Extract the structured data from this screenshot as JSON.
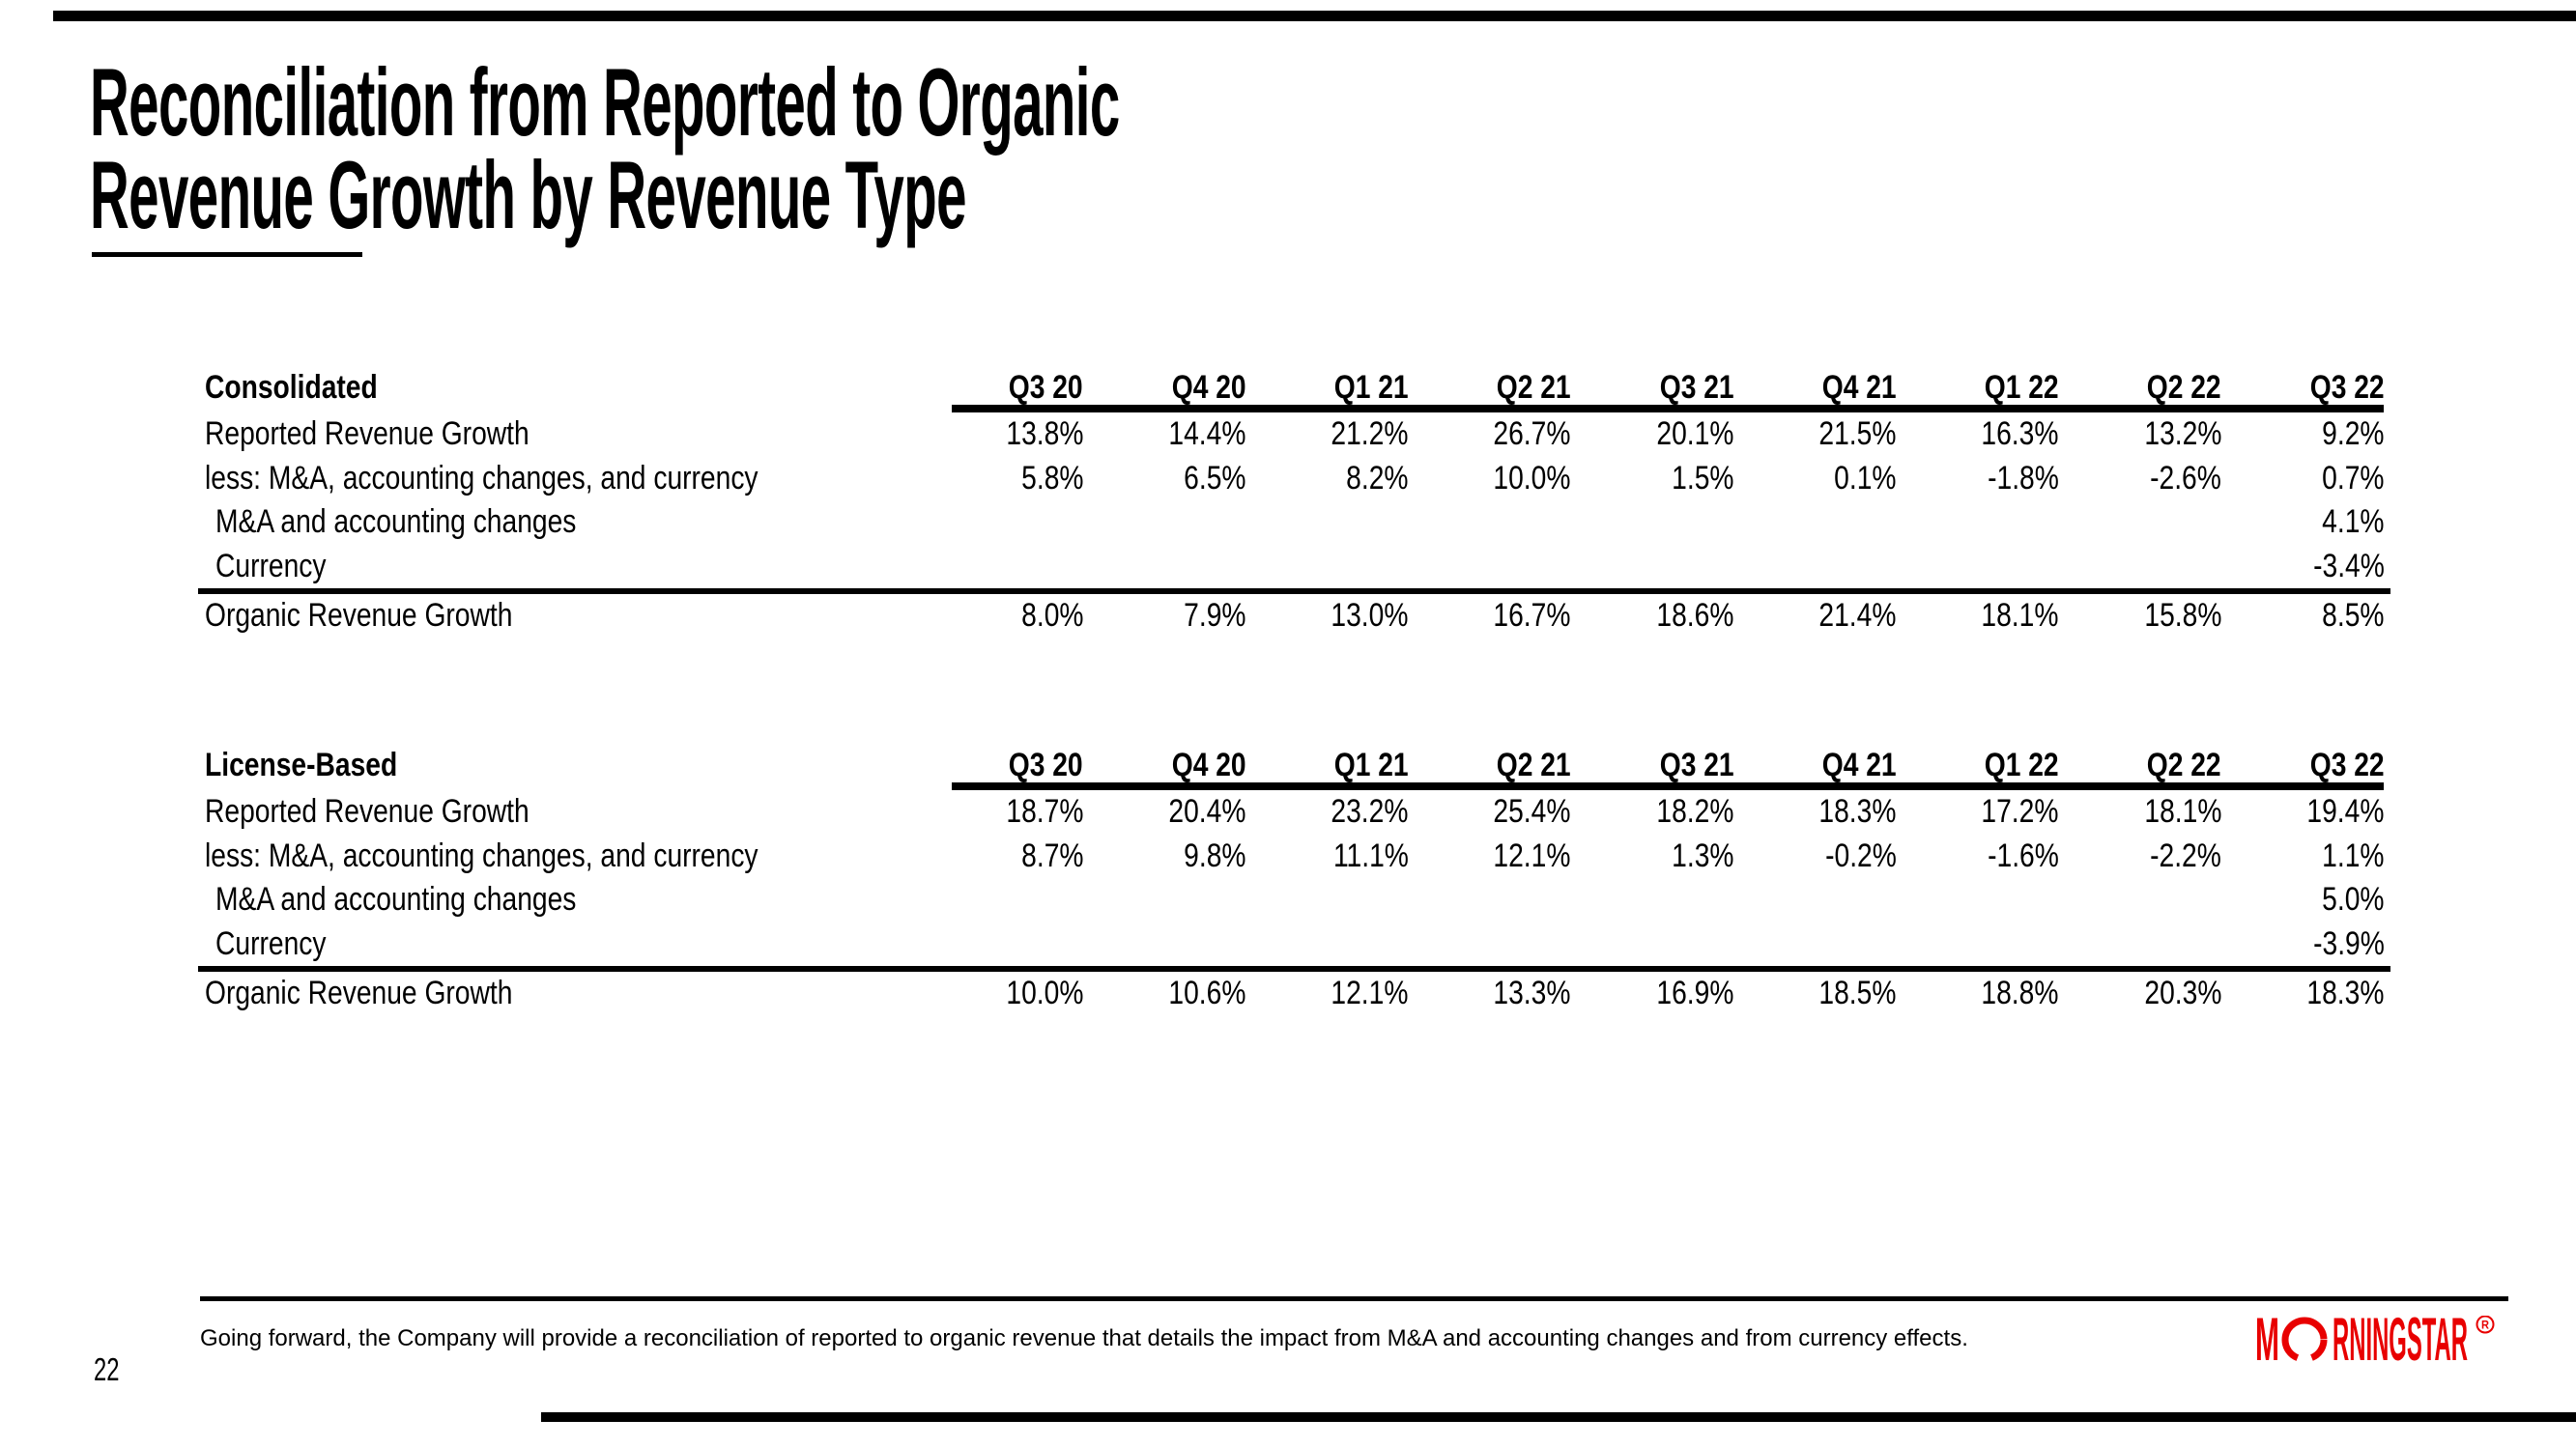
{
  "slide": {
    "title_line1": "Reconciliation from Reported to Organic",
    "title_line2": "Revenue Growth by Revenue Type",
    "page_number": "22",
    "footnote": "Going forward, the Company will provide a reconciliation of reported to organic revenue that details the impact from M&A and accounting changes and from currency effects.",
    "background_color": "#ffffff",
    "text_color": "#000000",
    "logo": {
      "prefix": "M",
      "suffix": "RNINGSTAR",
      "registered_mark": "R",
      "color": "#e80000"
    }
  },
  "columns": [
    "Q3 20",
    "Q4 20",
    "Q1 21",
    "Q2 21",
    "Q3 21",
    "Q4 21",
    "Q1 22",
    "Q2 22",
    "Q3 22"
  ],
  "tables": [
    {
      "section_label": "Consolidated",
      "rows": [
        {
          "label": "Reported Revenue Growth",
          "indent": false,
          "total": false,
          "values": [
            "13.8%",
            "14.4%",
            "21.2%",
            "26.7%",
            "20.1%",
            "21.5%",
            "16.3%",
            "13.2%",
            "9.2%"
          ]
        },
        {
          "label": "less: M&A, accounting changes, and currency",
          "indent": false,
          "total": false,
          "values": [
            "5.8%",
            "6.5%",
            "8.2%",
            "10.0%",
            "1.5%",
            "0.1%",
            "-1.8%",
            "-2.6%",
            "0.7%"
          ]
        },
        {
          "label": "M&A and accounting changes",
          "indent": true,
          "total": false,
          "values": [
            "",
            "",
            "",
            "",
            "",
            "",
            "",
            "",
            "4.1%"
          ]
        },
        {
          "label": "Currency",
          "indent": true,
          "total": false,
          "values": [
            "",
            "",
            "",
            "",
            "",
            "",
            "",
            "",
            "-3.4%"
          ]
        },
        {
          "label": "Organic Revenue Growth",
          "indent": false,
          "total": true,
          "values": [
            "8.0%",
            "7.9%",
            "13.0%",
            "16.7%",
            "18.6%",
            "21.4%",
            "18.1%",
            "15.8%",
            "8.5%"
          ]
        }
      ]
    },
    {
      "section_label": "License-Based",
      "rows": [
        {
          "label": "Reported Revenue Growth",
          "indent": false,
          "total": false,
          "values": [
            "18.7%",
            "20.4%",
            "23.2%",
            "25.4%",
            "18.2%",
            "18.3%",
            "17.2%",
            "18.1%",
            "19.4%"
          ]
        },
        {
          "label": "less: M&A, accounting changes, and currency",
          "indent": false,
          "total": false,
          "values": [
            "8.7%",
            "9.8%",
            "11.1%",
            "12.1%",
            "1.3%",
            "-0.2%",
            "-1.6%",
            "-2.2%",
            "1.1%"
          ]
        },
        {
          "label": "M&A and accounting changes",
          "indent": true,
          "total": false,
          "values": [
            "",
            "",
            "",
            "",
            "",
            "",
            "",
            "",
            "5.0%"
          ]
        },
        {
          "label": "Currency",
          "indent": true,
          "total": false,
          "values": [
            "",
            "",
            "",
            "",
            "",
            "",
            "",
            "",
            "-3.9%"
          ]
        },
        {
          "label": "Organic Revenue Growth",
          "indent": false,
          "total": true,
          "values": [
            "10.0%",
            "10.6%",
            "12.1%",
            "13.3%",
            "16.9%",
            "18.5%",
            "18.8%",
            "20.3%",
            "18.3%"
          ]
        }
      ]
    }
  ]
}
